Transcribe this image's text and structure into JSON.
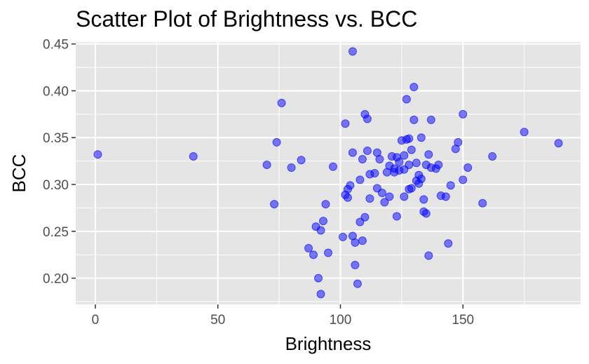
{
  "chart_data": {
    "type": "scatter",
    "title": "Scatter Plot of Brightness vs. BCC",
    "xlabel": "Brightness",
    "ylabel": "BCC",
    "xlim": [
      -8,
      198
    ],
    "ylim": [
      0.172,
      0.452
    ],
    "x_ticks": [
      0,
      50,
      100,
      150
    ],
    "x_tick_labels": [
      "0",
      "50",
      "100",
      "150"
    ],
    "y_ticks": [
      0.2,
      0.25,
      0.3,
      0.35,
      0.4,
      0.45
    ],
    "y_tick_labels": [
      "0.20",
      "0.25",
      "0.30",
      "0.35",
      "0.40",
      "0.45"
    ],
    "grid": true,
    "legend": "none",
    "colors": {
      "panel": "#e5e5e5",
      "grid": "#ffffff",
      "point_fill": "#0000ff",
      "point_opacity": 0.5
    },
    "points": [
      {
        "x": 1,
        "y": 0.332
      },
      {
        "x": 40,
        "y": 0.33
      },
      {
        "x": 70,
        "y": 0.321
      },
      {
        "x": 73,
        "y": 0.279
      },
      {
        "x": 74,
        "y": 0.345
      },
      {
        "x": 76,
        "y": 0.387
      },
      {
        "x": 80,
        "y": 0.318
      },
      {
        "x": 84,
        "y": 0.326
      },
      {
        "x": 87,
        "y": 0.232
      },
      {
        "x": 89,
        "y": 0.225
      },
      {
        "x": 90,
        "y": 0.255
      },
      {
        "x": 91,
        "y": 0.2
      },
      {
        "x": 92,
        "y": 0.251
      },
      {
        "x": 92,
        "y": 0.183
      },
      {
        "x": 93,
        "y": 0.261
      },
      {
        "x": 94,
        "y": 0.279
      },
      {
        "x": 95,
        "y": 0.227
      },
      {
        "x": 97,
        "y": 0.319
      },
      {
        "x": 101,
        "y": 0.244
      },
      {
        "x": 102,
        "y": 0.289
      },
      {
        "x": 102,
        "y": 0.365
      },
      {
        "x": 103,
        "y": 0.295
      },
      {
        "x": 103,
        "y": 0.286
      },
      {
        "x": 104,
        "y": 0.299
      },
      {
        "x": 105,
        "y": 0.245
      },
      {
        "x": 105,
        "y": 0.334
      },
      {
        "x": 105,
        "y": 0.442
      },
      {
        "x": 106,
        "y": 0.238
      },
      {
        "x": 106,
        "y": 0.214
      },
      {
        "x": 107,
        "y": 0.194
      },
      {
        "x": 108,
        "y": 0.305
      },
      {
        "x": 108,
        "y": 0.26
      },
      {
        "x": 109,
        "y": 0.327
      },
      {
        "x": 109,
        "y": 0.24
      },
      {
        "x": 110,
        "y": 0.265
      },
      {
        "x": 110,
        "y": 0.375
      },
      {
        "x": 111,
        "y": 0.37
      },
      {
        "x": 111,
        "y": 0.336
      },
      {
        "x": 112,
        "y": 0.311
      },
      {
        "x": 112,
        "y": 0.285
      },
      {
        "x": 114,
        "y": 0.312
      },
      {
        "x": 115,
        "y": 0.334
      },
      {
        "x": 115,
        "y": 0.296
      },
      {
        "x": 116,
        "y": 0.327
      },
      {
        "x": 117,
        "y": 0.291
      },
      {
        "x": 118,
        "y": 0.281
      },
      {
        "x": 119,
        "y": 0.313
      },
      {
        "x": 120,
        "y": 0.32
      },
      {
        "x": 120,
        "y": 0.287
      },
      {
        "x": 121,
        "y": 0.33
      },
      {
        "x": 122,
        "y": 0.317
      },
      {
        "x": 122,
        "y": 0.313
      },
      {
        "x": 123,
        "y": 0.329
      },
      {
        "x": 123,
        "y": 0.266
      },
      {
        "x": 124,
        "y": 0.324
      },
      {
        "x": 124,
        "y": 0.315
      },
      {
        "x": 125,
        "y": 0.347
      },
      {
        "x": 126,
        "y": 0.287
      },
      {
        "x": 126,
        "y": 0.331
      },
      {
        "x": 126,
        "y": 0.316
      },
      {
        "x": 127,
        "y": 0.348
      },
      {
        "x": 127,
        "y": 0.391
      },
      {
        "x": 128,
        "y": 0.321
      },
      {
        "x": 128,
        "y": 0.295
      },
      {
        "x": 128,
        "y": 0.349
      },
      {
        "x": 129,
        "y": 0.337
      },
      {
        "x": 129,
        "y": 0.296
      },
      {
        "x": 130,
        "y": 0.404
      },
      {
        "x": 130,
        "y": 0.369
      },
      {
        "x": 131,
        "y": 0.323
      },
      {
        "x": 131,
        "y": 0.304
      },
      {
        "x": 132,
        "y": 0.31
      },
      {
        "x": 132,
        "y": 0.301
      },
      {
        "x": 133,
        "y": 0.306
      },
      {
        "x": 133,
        "y": 0.35
      },
      {
        "x": 134,
        "y": 0.284
      },
      {
        "x": 134,
        "y": 0.271
      },
      {
        "x": 135,
        "y": 0.321
      },
      {
        "x": 135,
        "y": 0.269
      },
      {
        "x": 136,
        "y": 0.332
      },
      {
        "x": 136,
        "y": 0.224
      },
      {
        "x": 137,
        "y": 0.369
      },
      {
        "x": 137,
        "y": 0.318
      },
      {
        "x": 139,
        "y": 0.317
      },
      {
        "x": 140,
        "y": 0.321
      },
      {
        "x": 141,
        "y": 0.288
      },
      {
        "x": 143,
        "y": 0.287
      },
      {
        "x": 144,
        "y": 0.237
      },
      {
        "x": 145,
        "y": 0.299
      },
      {
        "x": 147,
        "y": 0.338
      },
      {
        "x": 148,
        "y": 0.345
      },
      {
        "x": 150,
        "y": 0.305
      },
      {
        "x": 150,
        "y": 0.375
      },
      {
        "x": 152,
        "y": 0.318
      },
      {
        "x": 158,
        "y": 0.28
      },
      {
        "x": 162,
        "y": 0.33
      },
      {
        "x": 175,
        "y": 0.356
      },
      {
        "x": 189,
        "y": 0.344
      }
    ]
  }
}
